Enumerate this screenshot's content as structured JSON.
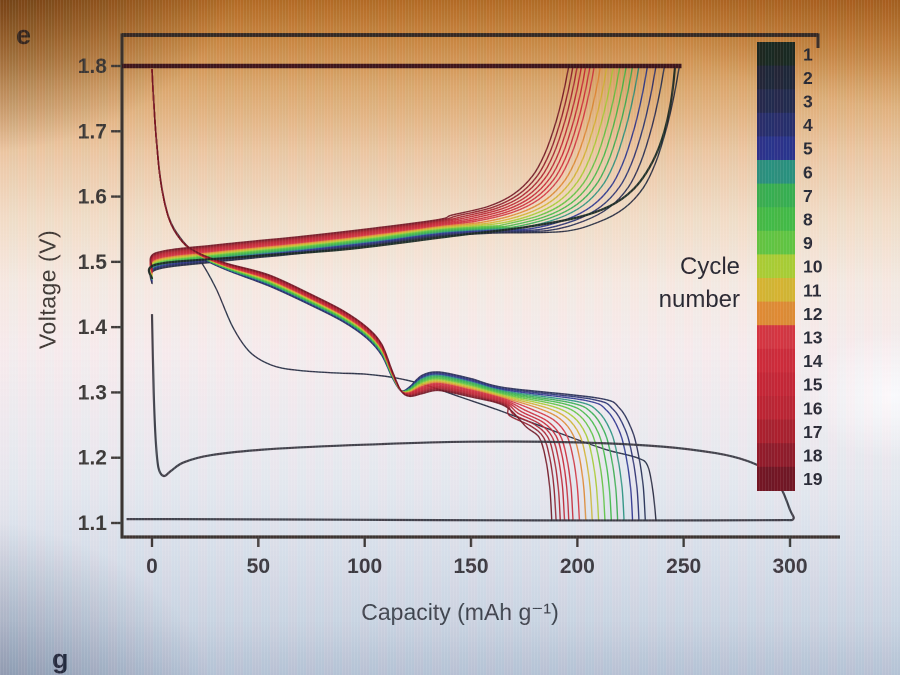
{
  "panel_labels": {
    "top": "e",
    "bottom": "g"
  },
  "legend": {
    "title_line1": "Cycle",
    "title_line2": "number"
  },
  "chart_data": {
    "type": "line",
    "title": "",
    "xlabel": "Capacity (mAh g⁻¹)",
    "ylabel": "Voltage (V)",
    "xlim": [
      -14,
      323
    ],
    "ylim": [
      1.078,
      1.851
    ],
    "x_ticks": [
      0,
      50,
      100,
      150,
      200,
      250,
      300
    ],
    "y_ticks": [
      1.1,
      1.2,
      1.3,
      1.4,
      1.5,
      1.6,
      1.7,
      1.8
    ],
    "grid": false,
    "legend_position": "right-inside",
    "cv_hold": {
      "voltage": 1.8,
      "x_start": -14,
      "x_end": 249
    },
    "charge_template": {
      "plateau": [
        [
          0,
          1.478
        ],
        [
          2,
          1.5
        ],
        [
          30,
          1.512
        ],
        [
          70,
          1.525
        ],
        [
          105,
          1.538
        ],
        [
          135,
          1.551
        ],
        [
          160,
          1.556
        ]
      ],
      "knee": [
        [
          -55,
          1.558
        ],
        [
          -38,
          1.572
        ],
        [
          -26,
          1.592
        ],
        [
          -17,
          1.622
        ],
        [
          -11,
          1.66
        ],
        [
          -6,
          1.71
        ],
        [
          -2.5,
          1.757
        ],
        [
          0,
          1.8
        ]
      ],
      "spread": 0.026
    },
    "discharge_template": {
      "head": [
        [
          0,
          1.795
        ],
        [
          1.5,
          1.71
        ],
        [
          4,
          1.625
        ],
        [
          8,
          1.566
        ],
        [
          14,
          1.532
        ]
      ],
      "mid": [
        [
          22,
          1.508,
          0.3
        ],
        [
          35,
          1.487,
          0.6
        ],
        [
          55,
          1.462,
          1
        ],
        [
          75,
          1.432,
          1
        ],
        [
          90,
          1.407,
          1
        ],
        [
          101,
          1.382,
          1
        ],
        [
          108,
          1.356,
          1
        ],
        [
          113,
          1.322,
          0.6
        ],
        [
          117,
          1.303,
          0
        ]
      ],
      "post": [
        [
          121,
          1.302,
          0.5
        ],
        [
          127,
          1.314,
          1
        ],
        [
          135,
          1.319,
          1
        ],
        [
          150,
          1.309,
          1
        ],
        [
          166,
          1.295,
          1
        ]
      ],
      "tail": [
        [
          -22,
          1.279,
          1
        ],
        [
          -12,
          1.263,
          1
        ],
        [
          -6,
          1.236,
          0.3
        ],
        [
          -3,
          1.2,
          0
        ],
        [
          -1,
          1.155,
          0
        ],
        [
          0,
          1.103,
          0
        ]
      ],
      "spread_pre": 0.018,
      "spread_post_base": 0.014,
      "spread_post_slope": -0.03
    },
    "cycles": [
      {
        "cycle": 1,
        "color": "#14261d",
        "charge_capacity": 246,
        "discharge_capacity": 301,
        "charge_points": [
          [
            0,
            1.474
          ],
          [
            2,
            1.496
          ],
          [
            40,
            1.507
          ],
          [
            90,
            1.519
          ],
          [
            140,
            1.539
          ],
          [
            175,
            1.553
          ],
          [
            200,
            1.568
          ],
          [
            215,
            1.585
          ],
          [
            226,
            1.61
          ],
          [
            234,
            1.645
          ],
          [
            240,
            1.69
          ],
          [
            244,
            1.745
          ],
          [
            246,
            1.8
          ]
        ],
        "discharge_points": [
          [
            0,
            1.42
          ],
          [
            0.8,
            1.3
          ],
          [
            1.8,
            1.225
          ],
          [
            3,
            1.185
          ],
          [
            5.5,
            1.172
          ],
          [
            9,
            1.18
          ],
          [
            15,
            1.193
          ],
          [
            28,
            1.204
          ],
          [
            55,
            1.213
          ],
          [
            100,
            1.22
          ],
          [
            150,
            1.2245
          ],
          [
            200,
            1.2235
          ],
          [
            240,
            1.217
          ],
          [
            265,
            1.207
          ],
          [
            280,
            1.195
          ],
          [
            290,
            1.178
          ],
          [
            296,
            1.152
          ],
          [
            300,
            1.12
          ],
          [
            301.5,
            1.106
          ],
          [
            295,
            1.1045
          ],
          [
            260,
            1.104
          ],
          [
            180,
            1.104
          ],
          [
            90,
            1.105
          ],
          [
            10,
            1.106
          ],
          [
            -12,
            1.106
          ]
        ]
      },
      {
        "cycle": 2,
        "color": "#1a2337",
        "charge_capacity": 248,
        "discharge_capacity": 237,
        "discharge_points": [
          [
            0,
            1.795
          ],
          [
            1.5,
            1.712
          ],
          [
            4,
            1.628
          ],
          [
            8,
            1.568
          ],
          [
            14,
            1.534
          ],
          [
            22,
            1.505
          ],
          [
            30,
            1.46
          ],
          [
            38,
            1.4
          ],
          [
            46,
            1.362
          ],
          [
            56,
            1.342
          ],
          [
            68,
            1.334
          ],
          [
            85,
            1.33
          ],
          [
            100,
            1.328
          ],
          [
            115,
            1.322
          ],
          [
            130,
            1.31
          ],
          [
            145,
            1.293
          ],
          [
            162,
            1.274
          ],
          [
            180,
            1.252
          ],
          [
            198,
            1.23
          ],
          [
            214,
            1.212
          ],
          [
            228,
            1.2
          ],
          [
            233,
            1.188
          ],
          [
            235.5,
            1.15
          ],
          [
            237,
            1.103
          ]
        ]
      },
      {
        "cycle": 3,
        "color": "#1e264d",
        "charge_capacity": 241,
        "discharge_capacity": 232
      },
      {
        "cycle": 4,
        "color": "#222b6d",
        "charge_capacity": 237,
        "discharge_capacity": 229
      },
      {
        "cycle": 5,
        "color": "#25308d",
        "charge_capacity": 233,
        "discharge_capacity": 226
      },
      {
        "cycle": 6,
        "color": "#25917c",
        "charge_capacity": 229,
        "discharge_capacity": 222
      },
      {
        "cycle": 7,
        "color": "#33b04c",
        "charge_capacity": 226,
        "discharge_capacity": 219
      },
      {
        "cycle": 8,
        "color": "#3fbc41",
        "charge_capacity": 223,
        "discharge_capacity": 216
      },
      {
        "cycle": 9,
        "color": "#5ec63c",
        "charge_capacity": 220,
        "discharge_capacity": 213
      },
      {
        "cycle": 10,
        "color": "#a8ce2e",
        "charge_capacity": 217,
        "discharge_capacity": 210
      },
      {
        "cycle": 11,
        "color": "#d4b52c",
        "charge_capacity": 214,
        "discharge_capacity": 207
      },
      {
        "cycle": 12,
        "color": "#df8a2e",
        "charge_capacity": 211,
        "discharge_capacity": 204
      },
      {
        "cycle": 13,
        "color": "#d4323c",
        "charge_capacity": 208,
        "discharge_capacity": 201
      },
      {
        "cycle": 14,
        "color": "#cd2734",
        "charge_capacity": 206,
        "discharge_capacity": 198
      },
      {
        "cycle": 15,
        "color": "#c52230",
        "charge_capacity": 204,
        "discharge_capacity": 196
      },
      {
        "cycle": 16,
        "color": "#bc202d",
        "charge_capacity": 202,
        "discharge_capacity": 194
      },
      {
        "cycle": 17,
        "color": "#a91c28",
        "charge_capacity": 200,
        "discharge_capacity": 192
      },
      {
        "cycle": 18,
        "color": "#8f1724",
        "charge_capacity": 198,
        "discharge_capacity": 190
      },
      {
        "cycle": 19,
        "color": "#6f111d",
        "charge_capacity": 196,
        "discharge_capacity": 188
      }
    ]
  }
}
